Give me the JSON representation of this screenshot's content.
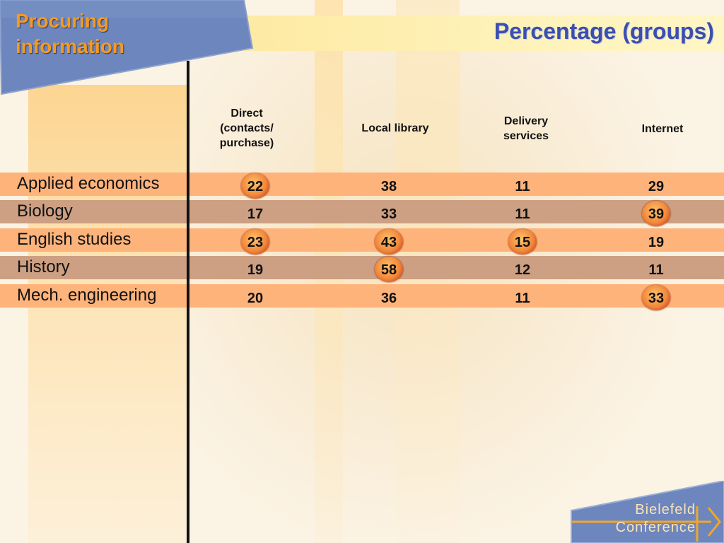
{
  "tab_title": "Procuring information",
  "page_title": "Percentage (groups)",
  "columns": [
    {
      "label": "Direct (contacts/ purchase)"
    },
    {
      "label": "Local library"
    },
    {
      "label": "Delivery services"
    },
    {
      "label": "Internet"
    }
  ],
  "rows": [
    {
      "label": "Applied economics",
      "values": [
        "22",
        "38",
        "11",
        "29"
      ],
      "highlight": [
        true,
        false,
        false,
        false
      ]
    },
    {
      "label": "Biology",
      "values": [
        "17",
        "33",
        "11",
        "39"
      ],
      "highlight": [
        false,
        false,
        false,
        true
      ]
    },
    {
      "label": "English studies",
      "values": [
        "23",
        "43",
        "15",
        "19"
      ],
      "highlight": [
        true,
        true,
        true,
        false
      ]
    },
    {
      "label": "History",
      "values": [
        "19",
        "58",
        "12",
        "11"
      ],
      "highlight": [
        false,
        true,
        false,
        false
      ]
    },
    {
      "label": "Mech. engineering",
      "values": [
        "20",
        "36",
        "11",
        "33"
      ],
      "highlight": [
        false,
        false,
        false,
        true
      ]
    }
  ],
  "logo": {
    "line1": "Bielefeld",
    "line2": "Conference"
  },
  "colors": {
    "tab_blue": "#6d86bd",
    "title_orange": "#f59a21",
    "title_blue": "#3a4fb0",
    "row_orange": "#fdb37a",
    "row_brown": "#cda083",
    "highlight": "#e8702e"
  }
}
